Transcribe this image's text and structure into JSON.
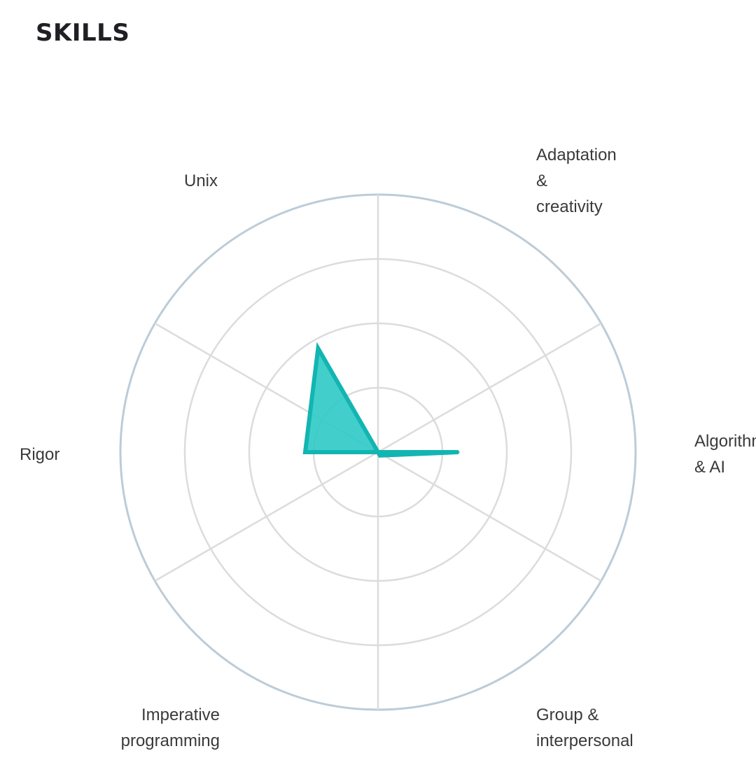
{
  "header": {
    "title": "SKILLS"
  },
  "colors": {
    "grid_ring": "#dcdcdc",
    "outer_ring": "#bcccd8",
    "spoke": "#dcdcdc",
    "fill": "#2ecac6",
    "stroke": "#12b5b1",
    "label": "#3a3a3a"
  },
  "chart_data": {
    "type": "radar",
    "title": "SKILLS",
    "axes": [
      {
        "label_lines": [
          "Adaptation",
          "&",
          "creativity"
        ]
      },
      {
        "label_lines": [
          "Algorithmics",
          "& AI"
        ]
      },
      {
        "label_lines": [
          "Group &",
          "interpersonal"
        ]
      },
      {
        "label_lines": [
          "Imperative",
          "programming"
        ]
      },
      {
        "label_lines": [
          "Rigor"
        ]
      },
      {
        "label_lines": [
          "Unix"
        ]
      }
    ],
    "series": [
      {
        "values": [
          0.0,
          1.25,
          0.06,
          0.0,
          1.13,
          1.86
        ]
      }
    ],
    "rmax": 4,
    "rings": 4,
    "grid": true
  }
}
